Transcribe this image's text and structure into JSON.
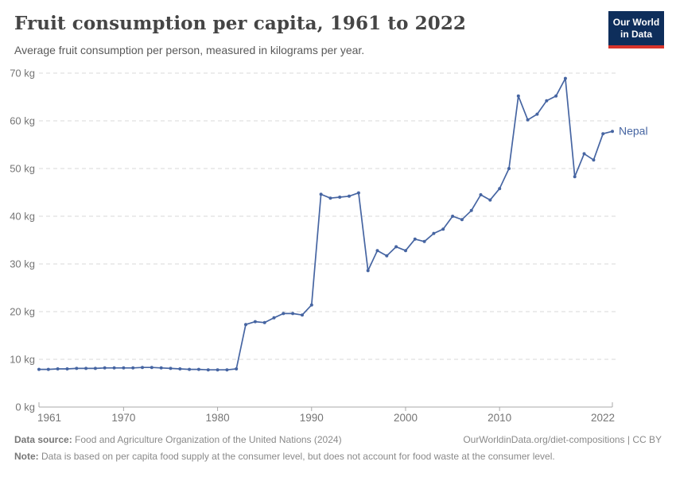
{
  "header": {
    "title": "Fruit consumption per capita, 1961 to 2022",
    "subtitle": "Average fruit consumption per person, measured in kilograms per year.",
    "logo_line1": "Our World",
    "logo_line2": "in Data"
  },
  "chart_data": {
    "type": "line",
    "title": "Fruit consumption per capita, 1961 to 2022",
    "unit": "kg",
    "ylim": [
      0,
      70
    ],
    "yticks": [
      0,
      10,
      20,
      30,
      40,
      50,
      60,
      70
    ],
    "ytick_suffix": " kg",
    "x_range": [
      1961,
      2022
    ],
    "xticks": [
      1961,
      1970,
      1980,
      1990,
      2000,
      2010,
      2022
    ],
    "grid": "horizontal-dashed",
    "legend_position": "end-of-line-label",
    "series": [
      {
        "name": "Nepal",
        "color": "#4665A2",
        "years": [
          1961,
          1962,
          1963,
          1964,
          1965,
          1966,
          1967,
          1968,
          1969,
          1970,
          1971,
          1972,
          1973,
          1974,
          1975,
          1976,
          1977,
          1978,
          1979,
          1980,
          1981,
          1982,
          1983,
          1984,
          1985,
          1986,
          1987,
          1988,
          1989,
          1990,
          1991,
          1992,
          1993,
          1994,
          1995,
          1996,
          1997,
          1998,
          1999,
          2000,
          2001,
          2002,
          2003,
          2004,
          2005,
          2006,
          2007,
          2008,
          2009,
          2010,
          2011,
          2012,
          2013,
          2014,
          2015,
          2016,
          2017,
          2018,
          2019,
          2020,
          2021,
          2022
        ],
        "values": [
          7.9,
          7.9,
          8.0,
          8.0,
          8.1,
          8.1,
          8.1,
          8.2,
          8.2,
          8.2,
          8.2,
          8.3,
          8.3,
          8.2,
          8.1,
          8.0,
          7.9,
          7.9,
          7.8,
          7.8,
          7.8,
          8.0,
          17.3,
          17.9,
          17.7,
          18.7,
          19.6,
          19.6,
          19.3,
          21.4,
          44.6,
          43.8,
          44.0,
          44.2,
          44.9,
          28.6,
          32.8,
          31.7,
          33.6,
          32.8,
          35.2,
          34.7,
          36.4,
          37.3,
          40.0,
          39.3,
          41.2,
          44.5,
          43.4,
          45.8,
          50.0,
          65.2,
          60.2,
          61.4,
          64.2,
          65.2,
          68.9,
          48.3,
          53.1,
          51.8,
          57.3,
          57.8
        ]
      }
    ]
  },
  "footer": {
    "datasource_label": "Data source:",
    "datasource_text": "Food and Agriculture Organization of the United Nations (2024)",
    "license": "OurWorldinData.org/diet-compositions | CC BY",
    "note_label": "Note:",
    "note_text": "Data is based on per capita food supply at the consumer level, but does not account for food waste at the consumer level."
  },
  "colors": {
    "line": "#4665A2",
    "axis": "#a8a8a8",
    "gridline": "#dadada",
    "tick_text": "#757575",
    "logo_bg": "#0E2E5B",
    "logo_bar": "#D7342B"
  }
}
